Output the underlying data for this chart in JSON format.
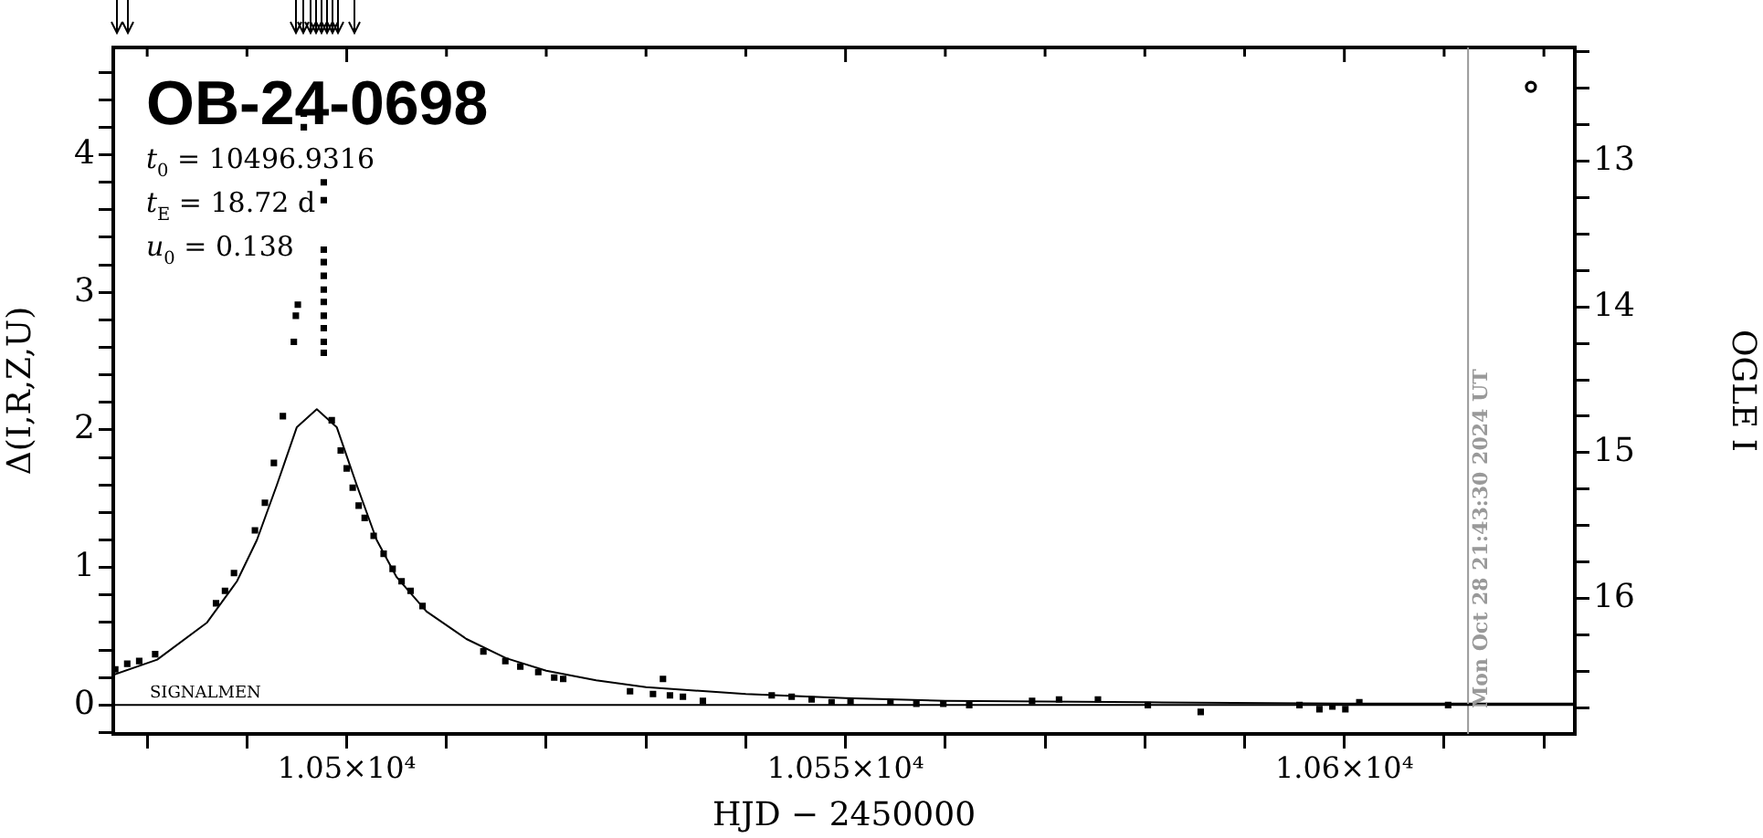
{
  "chart_data": {
    "type": "scatter",
    "title": "OB-24-0698",
    "xlabel": "HJD − 2450000",
    "ylabel": "Δ(I,R,Z,U)",
    "y2label": "OGLE I",
    "annotations": [
      "t$_{0}$ = 10496.9316",
      "t$_{E}$ = 18.72 d",
      "u$_{0}$ = 0.138",
      "SIGNALMEN",
      {
        "text": "Mon Oct 28 21:43:30 2024 UT",
        "x": 10612.4
      }
    ],
    "series": [
      {
        "marker": "square",
        "color": "#000000",
        "x": [
          10476.8,
          10478.0,
          10479.2,
          10480.8,
          10486.9,
          10487.8,
          10488.7,
          10490.8,
          10491.8,
          10492.7,
          10493.6,
          10494.7,
          10494.9,
          10495.1,
          10495.7,
          10495.7,
          10497.7,
          10497.7,
          10497.7,
          10497.7,
          10497.7,
          10497.7,
          10497.7,
          10497.7,
          10497.7,
          10497.7,
          10497.7,
          10498.5,
          10499.4,
          10500.0,
          10500.6,
          10501.2,
          10501.8,
          10502.7,
          10503.7,
          10504.6,
          10505.5,
          10506.4,
          10507.6,
          10513.7,
          10515.9,
          10517.4,
          10519.2,
          10520.8,
          10521.7,
          10528.4,
          10530.7,
          10531.7,
          10532.4,
          10533.7,
          10535.7,
          10542.6,
          10544.6,
          10546.6,
          10548.6,
          10550.5,
          10554.5,
          10557.1,
          10559.8,
          10562.4,
          10568.7,
          10571.4,
          10575.3,
          10580.3,
          10585.6,
          10595.5,
          10597.5,
          10598.8,
          10600.1,
          10601.5,
          10610.4
        ],
        "values": [
          0.26,
          0.3,
          0.32,
          0.37,
          0.74,
          0.83,
          0.96,
          1.27,
          1.47,
          1.76,
          2.1,
          2.64,
          2.83,
          2.91,
          4.3,
          4.2,
          3.8,
          3.67,
          3.31,
          3.22,
          3.12,
          3.02,
          2.93,
          2.83,
          2.74,
          2.64,
          2.56,
          2.07,
          1.85,
          1.72,
          1.58,
          1.45,
          1.36,
          1.23,
          1.1,
          0.99,
          0.9,
          0.83,
          0.72,
          0.39,
          0.32,
          0.28,
          0.24,
          0.2,
          0.19,
          0.1,
          0.08,
          0.19,
          0.07,
          0.06,
          0.03,
          0.07,
          0.06,
          0.04,
          0.02,
          0.02,
          0.02,
          0.01,
          0.01,
          0.0,
          0.03,
          0.04,
          0.04,
          0.0,
          -0.05,
          0.0,
          -0.03,
          -0.01,
          -0.03,
          0.02,
          0.0
        ]
      },
      {
        "type": "line",
        "marker": "none",
        "color": "#000000",
        "x": [
          10476.6,
          10481,
          10486,
          10489,
          10491,
          10493,
          10495,
          10497,
          10499,
          10501,
          10503,
          10505,
          10508,
          10512,
          10516,
          10520,
          10525,
          10530,
          10540,
          10550,
          10560,
          10580,
          10600,
          10623
        ],
        "values": [
          0.22,
          0.33,
          0.6,
          0.9,
          1.2,
          1.6,
          2.02,
          2.15,
          2.02,
          1.6,
          1.2,
          0.93,
          0.68,
          0.48,
          0.34,
          0.25,
          0.18,
          0.13,
          0.08,
          0.05,
          0.03,
          0.02,
          0.01,
          0.01
        ]
      },
      {
        "type": "scatter",
        "marker": "circle",
        "color": "#000000",
        "axis": "y2",
        "x": [
          10618.7
        ],
        "values": [
          12.49
        ]
      }
    ],
    "xlim": [
      10476.6,
      10623.1
    ],
    "xticks": [
      {
        "value": 10480,
        "label": null
      },
      {
        "value": 10490,
        "label": null
      },
      {
        "value": 10500,
        "label": "1.05×10⁴"
      },
      {
        "value": 10510,
        "label": null
      },
      {
        "value": 10520,
        "label": null
      },
      {
        "value": 10530,
        "label": null
      },
      {
        "value": 10540,
        "label": null
      },
      {
        "value": 10550,
        "label": "1.055×10⁴"
      },
      {
        "value": 10560,
        "label": null
      },
      {
        "value": 10570,
        "label": null
      },
      {
        "value": 10580,
        "label": null
      },
      {
        "value": 10590,
        "label": null
      },
      {
        "value": 10600,
        "label": "1.06×10⁴"
      },
      {
        "value": 10610,
        "label": null
      },
      {
        "value": 10620,
        "label": null
      }
    ],
    "ylim": [
      -0.21,
      4.78
    ],
    "yticks": [
      {
        "value": -0.2,
        "label": null
      },
      0,
      {
        "value": 0.2,
        "label": null
      },
      {
        "value": 0.4,
        "label": null
      },
      {
        "value": 0.6,
        "label": null
      },
      {
        "value": 0.8,
        "label": null
      },
      1,
      {
        "value": 1.2,
        "label": null
      },
      {
        "value": 1.4,
        "label": null
      },
      {
        "value": 1.6,
        "label": null
      },
      {
        "value": 1.8,
        "label": null
      },
      2,
      {
        "value": 2.2,
        "label": null
      },
      {
        "value": 2.4,
        "label": null
      },
      {
        "value": 2.6,
        "label": null
      },
      {
        "value": 2.8,
        "label": null
      },
      3,
      {
        "value": 3.2,
        "label": null
      },
      {
        "value": 3.4,
        "label": null
      },
      {
        "value": 3.6,
        "label": null
      },
      {
        "value": 3.8,
        "label": null
      },
      4,
      {
        "value": 4.2,
        "label": null
      },
      {
        "value": 4.4,
        "label": null
      },
      {
        "value": 4.6,
        "label": null
      }
    ],
    "y2lim": [
      16.93,
      12.22
    ],
    "y2ticks": [
      {
        "value": 12.25,
        "label": null
      },
      {
        "value": 12.5,
        "label": null
      },
      {
        "value": 12.75,
        "label": null
      },
      13,
      {
        "value": 13.25,
        "label": null
      },
      {
        "value": 13.5,
        "label": null
      },
      {
        "value": 13.75,
        "label": null
      },
      14,
      {
        "value": 14.25,
        "label": null
      },
      {
        "value": 14.5,
        "label": null
      },
      {
        "value": 14.75,
        "label": null
      },
      15,
      {
        "value": 15.25,
        "label": null
      },
      {
        "value": 15.5,
        "label": null
      },
      {
        "value": 15.75,
        "label": null
      },
      16,
      {
        "value": 16.25,
        "label": null
      },
      {
        "value": 16.5,
        "label": null
      },
      {
        "value": 16.75,
        "label": null
      }
    ],
    "ref_lines": [
      {
        "axis": "x",
        "value": 10612.4,
        "color": "#999999"
      },
      {
        "axis": "y",
        "value": 0,
        "color": "#000000"
      }
    ],
    "grid": false,
    "legend": false
  }
}
